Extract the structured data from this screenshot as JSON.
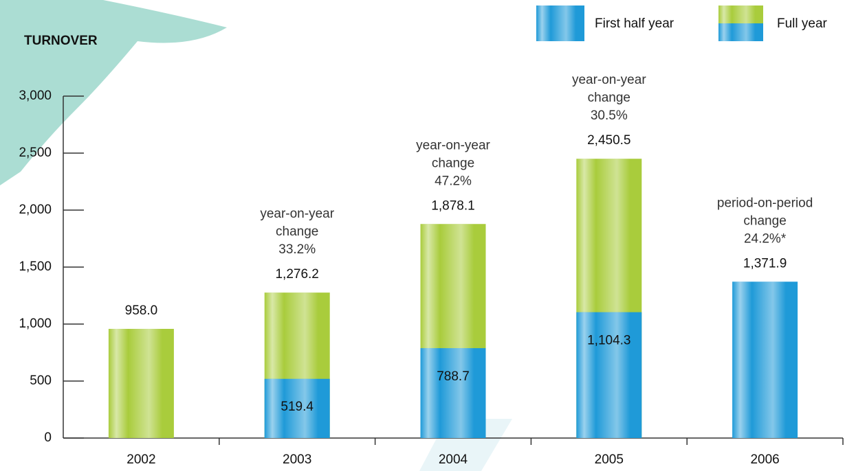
{
  "chart_data": {
    "type": "bar",
    "title": "TURNOVER",
    "categories": [
      "2002",
      "2003",
      "2004",
      "2005",
      "2006"
    ],
    "series": [
      {
        "name": "Full year",
        "color": "#a9cc3c",
        "values": [
          958.0,
          1276.2,
          1878.1,
          2450.5,
          null
        ],
        "value_labels": [
          "958.0",
          "1,276.2",
          "1,878.1",
          "2,450.5",
          null
        ]
      },
      {
        "name": "First half year",
        "color": "#1f9ad8",
        "values": [
          null,
          519.4,
          788.7,
          1104.3,
          1371.9
        ],
        "value_labels": [
          null,
          "519.4",
          "788.7",
          "1,104.3",
          "1,371.9"
        ]
      }
    ],
    "change_labels": [
      null,
      [
        "year-on-year",
        "change",
        "33.2%"
      ],
      [
        "year-on-year",
        "change",
        "47.2%"
      ],
      [
        "year-on-year",
        "change",
        "30.5%"
      ],
      [
        "period-on-period",
        "change",
        "24.2%*"
      ]
    ],
    "ylim": [
      0,
      3000
    ],
    "yticks": [
      0,
      500,
      {
        "value": 1000,
        "label": "1,000"
      },
      {
        "value": 1500,
        "label": "1,500"
      },
      {
        "value": 2000,
        "label": "2,000"
      },
      {
        "value": 2500,
        "label": "2,500"
      },
      {
        "value": 3000,
        "label": "3,000"
      }
    ],
    "grid": false
  }
}
